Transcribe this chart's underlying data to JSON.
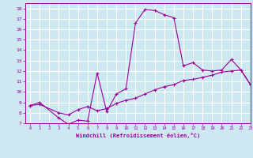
{
  "title": "",
  "xlabel": "Windchill (Refroidissement éolien,°C)",
  "background_color": "#cde8f0",
  "grid_color": "#ffffff",
  "line_color": "#990099",
  "xlim": [
    -0.5,
    23
  ],
  "ylim": [
    7,
    18.5
  ],
  "xticks": [
    0,
    1,
    2,
    3,
    4,
    5,
    6,
    7,
    8,
    9,
    10,
    11,
    12,
    13,
    14,
    15,
    16,
    17,
    18,
    19,
    20,
    21,
    22,
    23
  ],
  "yticks": [
    7,
    8,
    9,
    10,
    11,
    12,
    13,
    14,
    15,
    16,
    17,
    18
  ],
  "line1_x": [
    0,
    1,
    3,
    4,
    5,
    6,
    7,
    8,
    9,
    10,
    11,
    12,
    13,
    14,
    15,
    16,
    17,
    18,
    19,
    20,
    21,
    22,
    23
  ],
  "line1_y": [
    8.7,
    9.0,
    7.5,
    6.9,
    7.3,
    7.2,
    11.8,
    8.1,
    9.8,
    10.3,
    16.6,
    17.9,
    17.8,
    17.4,
    17.1,
    12.5,
    12.8,
    12.1,
    12.0,
    12.1,
    13.1,
    12.1,
    10.7
  ],
  "line2_x": [
    0,
    1,
    3,
    4,
    5,
    6,
    7,
    8,
    9,
    10,
    11,
    12,
    13,
    14,
    15,
    16,
    17,
    18,
    19,
    20,
    21,
    22,
    23
  ],
  "line2_y": [
    8.7,
    8.8,
    8.0,
    7.8,
    8.3,
    8.6,
    8.2,
    8.4,
    8.9,
    9.2,
    9.4,
    9.8,
    10.2,
    10.5,
    10.7,
    11.1,
    11.2,
    11.4,
    11.6,
    11.9,
    12.0,
    12.1,
    10.7
  ],
  "marker": "+"
}
